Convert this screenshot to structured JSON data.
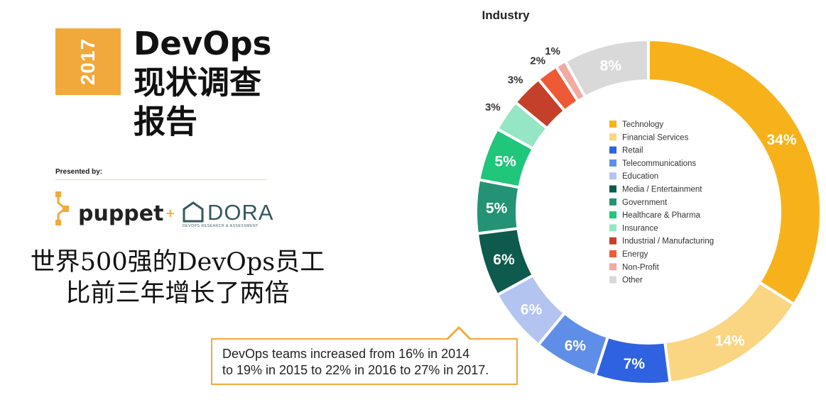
{
  "cover": {
    "year": "2017",
    "title_line1": "DevOps",
    "title_line2": "现状调查",
    "title_line3": "报告",
    "presented_by": "Presented by:",
    "logos": {
      "puppet": "puppet",
      "plus": "+",
      "dora": "DORA",
      "dora_subtitle": "DEVOPS RESEARCH & ASSESSMENT"
    },
    "accent_color": "#f2a93b"
  },
  "caption": {
    "line1": "世界500强的DevOps员工",
    "line2": "比前三年增长了两倍"
  },
  "callout": {
    "line1": "DevOps teams increased from 16% in 2014",
    "line2": "to 19% in 2015 to 22% in 2016 to 27% in 2017."
  },
  "chart_data": {
    "type": "pie",
    "style": "donut",
    "title": "Industry",
    "legend_position": "center",
    "slices": [
      {
        "label": "Technology",
        "value": 34,
        "display": "34%",
        "color": "#f7b21b"
      },
      {
        "label": "Financial Services",
        "value": 14,
        "display": "14%",
        "color": "#fad582"
      },
      {
        "label": "Retail",
        "value": 7,
        "display": "7%",
        "color": "#2f62e0"
      },
      {
        "label": "Telecommunications",
        "value": 6,
        "display": "6%",
        "color": "#5e8ee8"
      },
      {
        "label": "Education",
        "value": 6,
        "display": "6%",
        "color": "#b3c4f1"
      },
      {
        "label": "Media / Entertainment",
        "value": 6,
        "display": "6%",
        "color": "#0e5a4c"
      },
      {
        "label": "Government",
        "value": 5,
        "display": "5%",
        "color": "#249275"
      },
      {
        "label": "Healthcare & Pharma",
        "value": 5,
        "display": "5%",
        "color": "#20c67a"
      },
      {
        "label": "Insurance",
        "value": 3,
        "display": "3%",
        "color": "#94e6c4"
      },
      {
        "label": "Industrial / Manufacturing",
        "value": 3,
        "display": "3%",
        "color": "#c5402a"
      },
      {
        "label": "Energy",
        "value": 2,
        "display": "2%",
        "color": "#ef5a36"
      },
      {
        "label": "Non-Profit",
        "value": 1,
        "display": "1%",
        "color": "#f2aaa1"
      },
      {
        "label": "Other",
        "value": 8,
        "display": "8%",
        "color": "#d9d9d9"
      }
    ]
  }
}
